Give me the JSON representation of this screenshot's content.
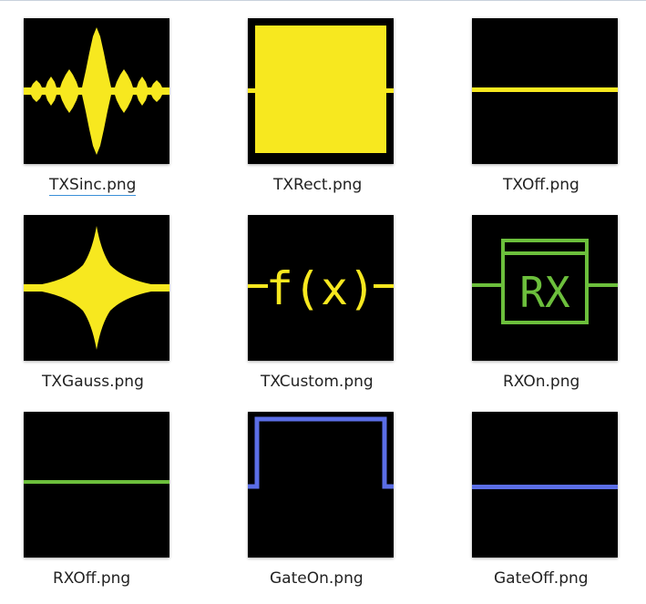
{
  "files": [
    {
      "name": "TXSinc.png",
      "icon": "sinc-pulse-icon",
      "color": "#f7e81f",
      "selected": true
    },
    {
      "name": "TXRect.png",
      "icon": "rect-pulse-icon",
      "color": "#f7e81f",
      "selected": false
    },
    {
      "name": "TXOff.png",
      "icon": "flat-line-icon",
      "color": "#f7e81f",
      "selected": false
    },
    {
      "name": "TXGauss.png",
      "icon": "gauss-pulse-icon",
      "color": "#f7e81f",
      "selected": false
    },
    {
      "name": "TXCustom.png",
      "icon": "custom-function-icon",
      "color": "#f7e81f",
      "icon_text": "f(x)",
      "selected": false
    },
    {
      "name": "RXOn.png",
      "icon": "receiver-on-icon",
      "color": "#6cbf3c",
      "icon_text": "RX",
      "selected": false
    },
    {
      "name": "RXOff.png",
      "icon": "flat-line-icon",
      "color": "#6cbf3c",
      "selected": false
    },
    {
      "name": "GateOn.png",
      "icon": "gate-on-icon",
      "color": "#5b6ee6",
      "selected": false
    },
    {
      "name": "GateOff.png",
      "icon": "flat-line-icon",
      "color": "#5b6ee6",
      "selected": false
    }
  ]
}
